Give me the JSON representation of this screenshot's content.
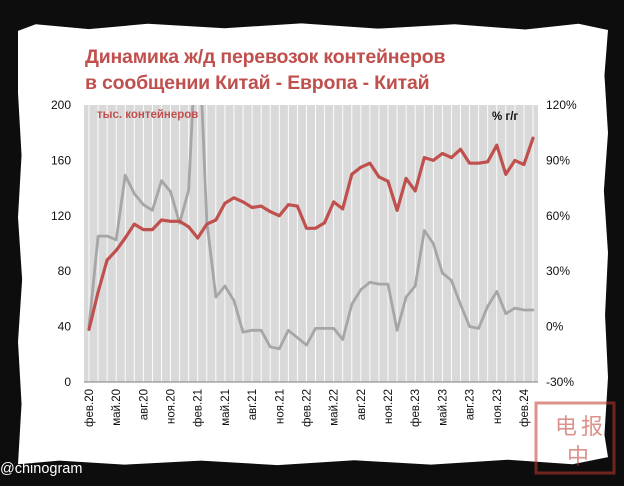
{
  "title": {
    "line1": "Динамика ж/д перевозок контейнеров",
    "line2": "в сообщении Китай - Европа - Китай"
  },
  "watermark": "@chinogram",
  "stamp_text": "电报中",
  "colors": {
    "volume": "#c0504d",
    "yoy": "#a6a6a6",
    "plot_bg": "#d9d9d9",
    "title": "#c0504d"
  },
  "chart_data": {
    "type": "line",
    "x": [
      "фев.20",
      "мар.20",
      "апр.20",
      "май.20",
      "июн.20",
      "июл.20",
      "авг.20",
      "сен.20",
      "окт.20",
      "ноя.20",
      "дек.20",
      "янв.21",
      "фев.21",
      "мар.21",
      "апр.21",
      "май.21",
      "июн.21",
      "июл.21",
      "авг.21",
      "сен.21",
      "окт.21",
      "ноя.21",
      "дек.21",
      "янв.22",
      "фев.22",
      "мар.22",
      "апр.22",
      "май.22",
      "июн.22",
      "июл.22",
      "авг.22",
      "сен.22",
      "окт.22",
      "ноя.22",
      "дек.22",
      "янв.23",
      "фев.23",
      "мар.23",
      "апр.23",
      "май.23",
      "июн.23",
      "июл.23",
      "авг.23",
      "сен.23",
      "окт.23",
      "ноя.23",
      "дек.23",
      "янв.24",
      "фев.24",
      "мар.24"
    ],
    "x_tick_labels": [
      "фев.20",
      "май.20",
      "авг.20",
      "ноя.20",
      "фев.21",
      "май.21",
      "авг.21",
      "ноя.21",
      "фев.22",
      "май.22",
      "авг.22",
      "ноя.22",
      "фев.23",
      "май.23",
      "авг.23",
      "ноя.23",
      "фев.24"
    ],
    "series": [
      {
        "name": "тыс. контейнеров",
        "axis": "left",
        "color": "#c0504d",
        "values": [
          38,
          65,
          88,
          95,
          104,
          114,
          110,
          110,
          117,
          116,
          116,
          112,
          104,
          114,
          117,
          129,
          133,
          130,
          126,
          127,
          123,
          120,
          128,
          127,
          111,
          111,
          115,
          130,
          125,
          150,
          155,
          158,
          148,
          145,
          124,
          147,
          138,
          162,
          160,
          165,
          162,
          168,
          158,
          158,
          159,
          171,
          150,
          160,
          157,
          176
        ]
      },
      {
        "name": "% г/г",
        "axis": "right",
        "color": "#a6a6a6",
        "values": [
          0,
          49,
          49,
          47,
          82,
          72,
          66,
          63,
          79,
          73,
          56,
          74,
          175,
          57,
          16,
          22,
          14,
          -3,
          -2,
          -2,
          -11,
          -12,
          -2,
          -6,
          -10,
          -1,
          -1,
          -1,
          -7,
          12,
          20,
          24,
          23,
          23,
          -2,
          16,
          22,
          52,
          45,
          29,
          25,
          12,
          0,
          -1,
          11,
          19,
          7,
          10,
          9,
          9
        ]
      }
    ],
    "y_left": {
      "label": "тыс. контейнеров",
      "ticks": [
        0,
        40,
        80,
        120,
        160,
        200
      ],
      "range": [
        0,
        200
      ]
    },
    "y_right": {
      "label": "% г/г",
      "ticks": [
        "-30%",
        "0%",
        "30%",
        "60%",
        "90%",
        "120%"
      ],
      "range": [
        -30,
        120
      ]
    },
    "grid": "vertical",
    "legend": "none"
  }
}
